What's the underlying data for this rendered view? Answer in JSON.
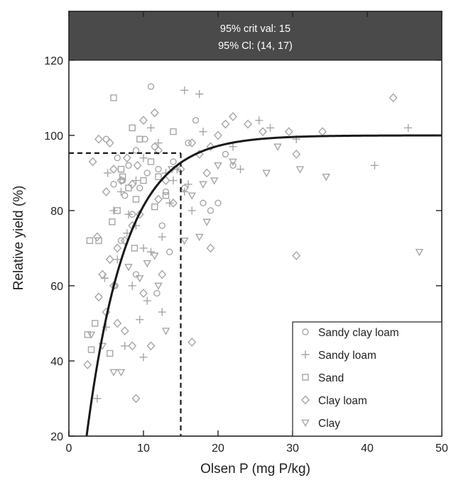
{
  "chart_data": {
    "type": "scatter",
    "xlabel": "Olsen P (mg P/kg)",
    "ylabel": "Relative yield (%)",
    "xlim": [
      0,
      50
    ],
    "ylim": [
      20,
      133
    ],
    "x_ticks": [
      0,
      10,
      20,
      30,
      40,
      50
    ],
    "y_ticks": [
      20,
      40,
      60,
      80,
      100,
      120
    ],
    "annotation_lines": [
      "95% crit val: 15",
      "95% Cl: (14, 17)"
    ],
    "critical_value": {
      "x": 15,
      "y": 95.3
    },
    "fitted_curve": {
      "description_params": {
        "plateau": 100,
        "x0": 1.2,
        "k": 0.19
      }
    },
    "legend_position": "bottom-right",
    "colors": {
      "points": "#a6a6a6",
      "curve": "#1a1a1a",
      "banner": "#4a4a4a",
      "banner_text": "#ffffff"
    },
    "series": [
      {
        "name": "Sandy clay loam",
        "marker": "circle",
        "points": [
          [
            5.0,
            99
          ],
          [
            6.5,
            94
          ],
          [
            7.2,
            88
          ],
          [
            8.0,
            92
          ],
          [
            9.0,
            96
          ],
          [
            10.2,
            99
          ],
          [
            11.0,
            113
          ],
          [
            11.5,
            97
          ],
          [
            12.0,
            91
          ],
          [
            13.0,
            85
          ],
          [
            14.0,
            93
          ],
          [
            16.0,
            98
          ],
          [
            17.0,
            104
          ],
          [
            18.0,
            82
          ],
          [
            19.0,
            80
          ],
          [
            20.0,
            82
          ],
          [
            21.0,
            95
          ],
          [
            22.0,
            92
          ],
          [
            6.0,
            87
          ],
          [
            7.5,
            84
          ],
          [
            8.5,
            79
          ],
          [
            9.5,
            86
          ],
          [
            10.5,
            90
          ],
          [
            12.5,
            76
          ],
          [
            13.5,
            69
          ],
          [
            9.0,
            63
          ],
          [
            6.2,
            60
          ],
          [
            7.0,
            72
          ],
          [
            15.5,
            86
          ],
          [
            11.8,
            58
          ]
        ]
      },
      {
        "name": "Sandy loam",
        "marker": "plus",
        "points": [
          [
            15.5,
            112
          ],
          [
            17.5,
            111
          ],
          [
            11.0,
            102
          ],
          [
            12.0,
            98
          ],
          [
            16.0,
            87
          ],
          [
            15.5,
            85
          ],
          [
            16.5,
            80
          ],
          [
            13.0,
            90
          ],
          [
            14.0,
            88
          ],
          [
            7.0,
            85
          ],
          [
            8.0,
            79
          ],
          [
            9.0,
            76
          ],
          [
            10.0,
            70
          ],
          [
            11.0,
            69
          ],
          [
            12.5,
            73
          ],
          [
            14.5,
            91
          ],
          [
            18.0,
            101
          ],
          [
            22.0,
            97
          ],
          [
            23.0,
            91
          ],
          [
            25.5,
            104
          ],
          [
            27.0,
            102
          ],
          [
            30.5,
            99
          ],
          [
            41.0,
            92
          ],
          [
            45.5,
            102
          ],
          [
            10.5,
            56
          ],
          [
            12.5,
            53
          ],
          [
            8.5,
            60
          ],
          [
            9.5,
            51
          ],
          [
            7.5,
            44
          ],
          [
            5.0,
            49
          ],
          [
            10.0,
            41
          ],
          [
            3.8,
            30
          ],
          [
            6.5,
            67
          ],
          [
            7.8,
            74
          ],
          [
            6.0,
            80
          ],
          [
            13.5,
            82
          ],
          [
            9.0,
            88
          ],
          [
            10.0,
            94
          ],
          [
            5.2,
            90
          ],
          [
            4.8,
            62
          ]
        ]
      },
      {
        "name": "Sand",
        "marker": "square",
        "points": [
          [
            6.0,
            110
          ],
          [
            8.5,
            102
          ],
          [
            9.5,
            99
          ],
          [
            14.0,
            101
          ],
          [
            11.0,
            93
          ],
          [
            12.0,
            89
          ],
          [
            13.0,
            84
          ],
          [
            3.5,
            50
          ],
          [
            2.5,
            47
          ],
          [
            3.0,
            43
          ],
          [
            5.5,
            42
          ],
          [
            7.0,
            91
          ],
          [
            8.0,
            86
          ],
          [
            9.0,
            83
          ],
          [
            10.0,
            88
          ],
          [
            6.5,
            80
          ],
          [
            11.5,
            81
          ],
          [
            5.8,
            77
          ],
          [
            4.0,
            72
          ],
          [
            2.8,
            72
          ],
          [
            7.2,
            89
          ],
          [
            8.8,
            70
          ]
        ]
      },
      {
        "name": "Clay loam",
        "marker": "diamond",
        "points": [
          [
            4.0,
            99
          ],
          [
            5.5,
            98
          ],
          [
            3.2,
            93
          ],
          [
            6.0,
            91
          ],
          [
            7.0,
            88
          ],
          [
            8.5,
            87
          ],
          [
            10.0,
            104
          ],
          [
            11.5,
            106
          ],
          [
            12.0,
            96
          ],
          [
            13.0,
            88
          ],
          [
            14.0,
            82
          ],
          [
            9.5,
            79
          ],
          [
            8.5,
            76
          ],
          [
            7.5,
            72
          ],
          [
            6.5,
            70
          ],
          [
            5.5,
            67
          ],
          [
            4.5,
            63
          ],
          [
            4.0,
            57
          ],
          [
            5.0,
            53
          ],
          [
            6.5,
            50
          ],
          [
            7.5,
            48
          ],
          [
            8.5,
            44
          ],
          [
            11.0,
            44
          ],
          [
            9.0,
            30
          ],
          [
            2.5,
            39
          ],
          [
            3.8,
            73
          ],
          [
            16.5,
            98
          ],
          [
            17.5,
            95
          ],
          [
            19.0,
            97
          ],
          [
            20.0,
            100
          ],
          [
            21.0,
            103
          ],
          [
            22.0,
            105
          ],
          [
            24.0,
            103
          ],
          [
            26.0,
            101
          ],
          [
            29.5,
            101
          ],
          [
            30.5,
            95
          ],
          [
            34.0,
            101
          ],
          [
            30.5,
            68
          ],
          [
            43.5,
            110
          ],
          [
            18.5,
            90
          ],
          [
            19.0,
            70
          ],
          [
            16.5,
            45
          ],
          [
            12.5,
            63
          ],
          [
            6.0,
            60
          ],
          [
            10.0,
            58
          ],
          [
            12.0,
            83
          ],
          [
            15.0,
            91
          ],
          [
            5.0,
            85
          ],
          [
            7.8,
            94
          ],
          [
            9.2,
            92
          ]
        ]
      },
      {
        "name": "Clay",
        "marker": "triangle-down",
        "points": [
          [
            3.0,
            47
          ],
          [
            4.5,
            44
          ],
          [
            6.0,
            37
          ],
          [
            7.0,
            37
          ],
          [
            13.0,
            48
          ],
          [
            11.5,
            68
          ],
          [
            15.5,
            72
          ],
          [
            17.5,
            73
          ],
          [
            18.5,
            77
          ],
          [
            18.0,
            87
          ],
          [
            20.0,
            92
          ],
          [
            22.0,
            93
          ],
          [
            26.5,
            90
          ],
          [
            28.0,
            97
          ],
          [
            31.0,
            91
          ],
          [
            34.5,
            89
          ],
          [
            47.0,
            69
          ],
          [
            10.5,
            66
          ],
          [
            9.5,
            62
          ],
          [
            12.0,
            60
          ],
          [
            8.0,
            65
          ],
          [
            16.5,
            84
          ],
          [
            19.5,
            88
          ],
          [
            13.8,
            91
          ]
        ]
      }
    ]
  }
}
